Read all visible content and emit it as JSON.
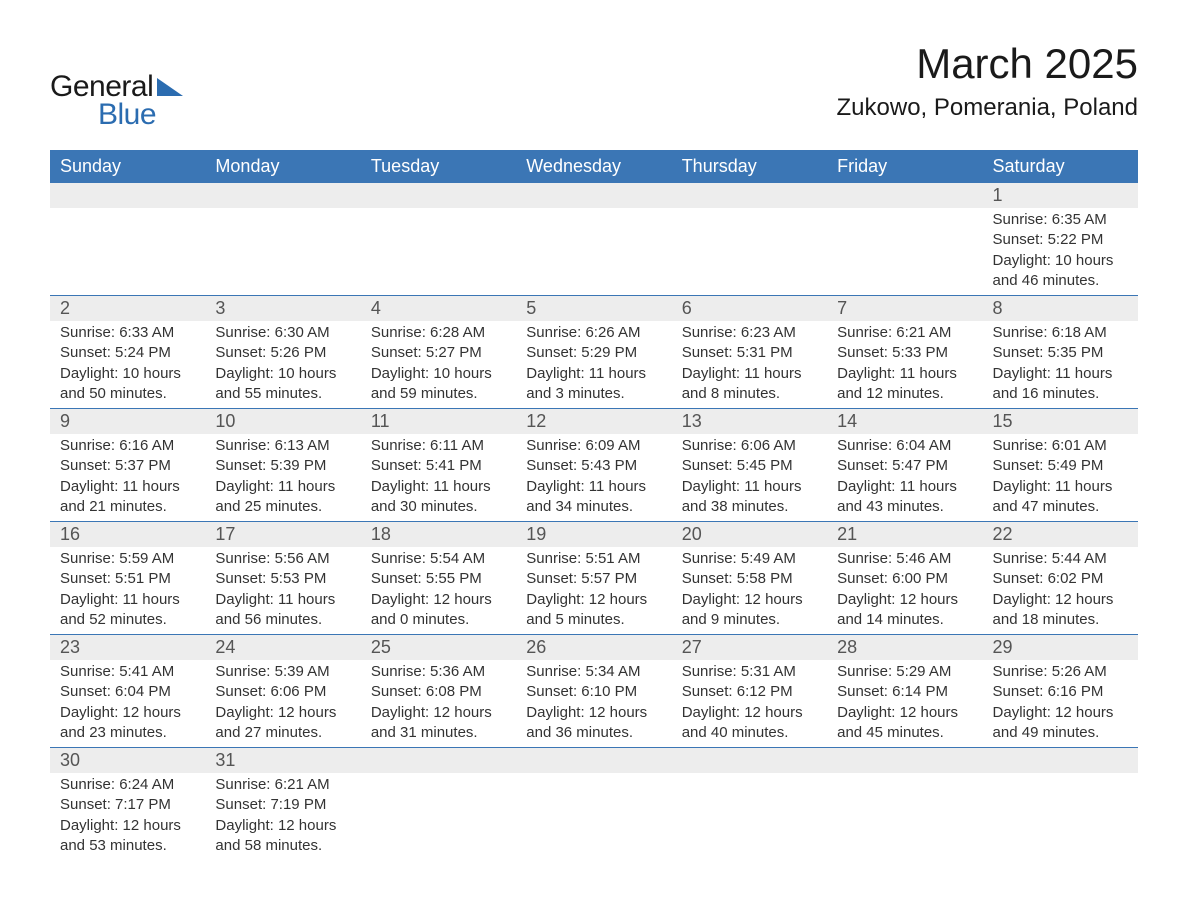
{
  "logo": {
    "text1": "General",
    "text2": "Blue"
  },
  "title": "March 2025",
  "location": "Zukowo, Pomerania, Poland",
  "weekdays": [
    "Sunday",
    "Monday",
    "Tuesday",
    "Wednesday",
    "Thursday",
    "Friday",
    "Saturday"
  ],
  "styling": {
    "header_bg": "#3b76b5",
    "header_fg": "#ffffff",
    "daynum_bg": "#ededed",
    "daynum_fg": "#555555",
    "body_fg": "#333333",
    "row_divider": "#3b76b5",
    "title_fontsize": 42,
    "location_fontsize": 24,
    "header_fontsize": 18,
    "daynum_fontsize": 18,
    "detail_fontsize": 15,
    "logo_accent": "#2b6cb0"
  },
  "weeks": [
    [
      null,
      null,
      null,
      null,
      null,
      null,
      {
        "n": "1",
        "sr": "6:35 AM",
        "ss": "5:22 PM",
        "dl": "10 hours and 46 minutes."
      }
    ],
    [
      {
        "n": "2",
        "sr": "6:33 AM",
        "ss": "5:24 PM",
        "dl": "10 hours and 50 minutes."
      },
      {
        "n": "3",
        "sr": "6:30 AM",
        "ss": "5:26 PM",
        "dl": "10 hours and 55 minutes."
      },
      {
        "n": "4",
        "sr": "6:28 AM",
        "ss": "5:27 PM",
        "dl": "10 hours and 59 minutes."
      },
      {
        "n": "5",
        "sr": "6:26 AM",
        "ss": "5:29 PM",
        "dl": "11 hours and 3 minutes."
      },
      {
        "n": "6",
        "sr": "6:23 AM",
        "ss": "5:31 PM",
        "dl": "11 hours and 8 minutes."
      },
      {
        "n": "7",
        "sr": "6:21 AM",
        "ss": "5:33 PM",
        "dl": "11 hours and 12 minutes."
      },
      {
        "n": "8",
        "sr": "6:18 AM",
        "ss": "5:35 PM",
        "dl": "11 hours and 16 minutes."
      }
    ],
    [
      {
        "n": "9",
        "sr": "6:16 AM",
        "ss": "5:37 PM",
        "dl": "11 hours and 21 minutes."
      },
      {
        "n": "10",
        "sr": "6:13 AM",
        "ss": "5:39 PM",
        "dl": "11 hours and 25 minutes."
      },
      {
        "n": "11",
        "sr": "6:11 AM",
        "ss": "5:41 PM",
        "dl": "11 hours and 30 minutes."
      },
      {
        "n": "12",
        "sr": "6:09 AM",
        "ss": "5:43 PM",
        "dl": "11 hours and 34 minutes."
      },
      {
        "n": "13",
        "sr": "6:06 AM",
        "ss": "5:45 PM",
        "dl": "11 hours and 38 minutes."
      },
      {
        "n": "14",
        "sr": "6:04 AM",
        "ss": "5:47 PM",
        "dl": "11 hours and 43 minutes."
      },
      {
        "n": "15",
        "sr": "6:01 AM",
        "ss": "5:49 PM",
        "dl": "11 hours and 47 minutes."
      }
    ],
    [
      {
        "n": "16",
        "sr": "5:59 AM",
        "ss": "5:51 PM",
        "dl": "11 hours and 52 minutes."
      },
      {
        "n": "17",
        "sr": "5:56 AM",
        "ss": "5:53 PM",
        "dl": "11 hours and 56 minutes."
      },
      {
        "n": "18",
        "sr": "5:54 AM",
        "ss": "5:55 PM",
        "dl": "12 hours and 0 minutes."
      },
      {
        "n": "19",
        "sr": "5:51 AM",
        "ss": "5:57 PM",
        "dl": "12 hours and 5 minutes."
      },
      {
        "n": "20",
        "sr": "5:49 AM",
        "ss": "5:58 PM",
        "dl": "12 hours and 9 minutes."
      },
      {
        "n": "21",
        "sr": "5:46 AM",
        "ss": "6:00 PM",
        "dl": "12 hours and 14 minutes."
      },
      {
        "n": "22",
        "sr": "5:44 AM",
        "ss": "6:02 PM",
        "dl": "12 hours and 18 minutes."
      }
    ],
    [
      {
        "n": "23",
        "sr": "5:41 AM",
        "ss": "6:04 PM",
        "dl": "12 hours and 23 minutes."
      },
      {
        "n": "24",
        "sr": "5:39 AM",
        "ss": "6:06 PM",
        "dl": "12 hours and 27 minutes."
      },
      {
        "n": "25",
        "sr": "5:36 AM",
        "ss": "6:08 PM",
        "dl": "12 hours and 31 minutes."
      },
      {
        "n": "26",
        "sr": "5:34 AM",
        "ss": "6:10 PM",
        "dl": "12 hours and 36 minutes."
      },
      {
        "n": "27",
        "sr": "5:31 AM",
        "ss": "6:12 PM",
        "dl": "12 hours and 40 minutes."
      },
      {
        "n": "28",
        "sr": "5:29 AM",
        "ss": "6:14 PM",
        "dl": "12 hours and 45 minutes."
      },
      {
        "n": "29",
        "sr": "5:26 AM",
        "ss": "6:16 PM",
        "dl": "12 hours and 49 minutes."
      }
    ],
    [
      {
        "n": "30",
        "sr": "6:24 AM",
        "ss": "7:17 PM",
        "dl": "12 hours and 53 minutes."
      },
      {
        "n": "31",
        "sr": "6:21 AM",
        "ss": "7:19 PM",
        "dl": "12 hours and 58 minutes."
      },
      null,
      null,
      null,
      null,
      null
    ]
  ],
  "labels": {
    "sunrise": "Sunrise: ",
    "sunset": "Sunset: ",
    "daylight": "Daylight: "
  }
}
